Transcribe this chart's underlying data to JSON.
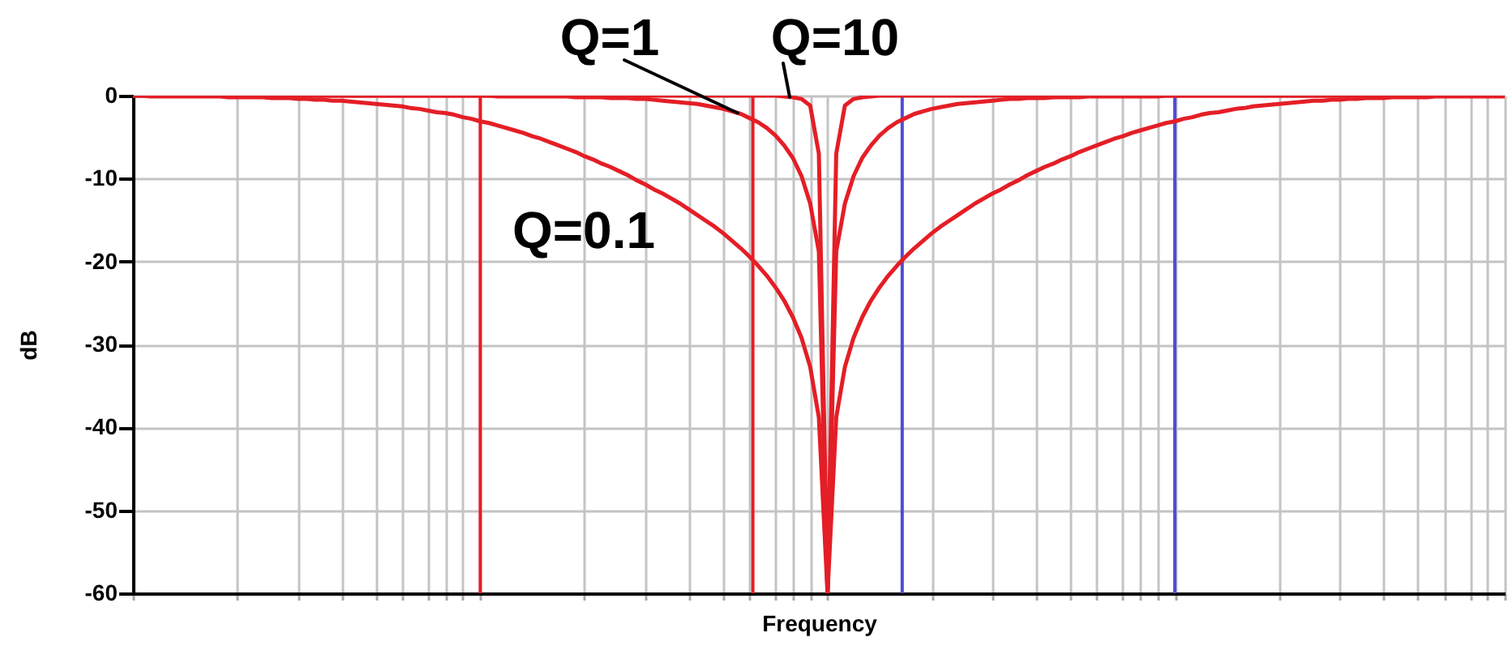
{
  "chart_data": {
    "type": "line",
    "xlabel": "Frequency",
    "ylabel": "dB",
    "grid": true,
    "tick_labels": "y",
    "categories": [
      null,
      null,
      null,
      null,
      null,
      null,
      null,
      null,
      null,
      null,
      null,
      null,
      null,
      null,
      null,
      null,
      null,
      null,
      null,
      null,
      null,
      null,
      null,
      null,
      null,
      null,
      null,
      null,
      null,
      null,
      null,
      null,
      null,
      null,
      null,
      null,
      null,
      null,
      null,
      null,
      null,
      null,
      null,
      null,
      null,
      null,
      null,
      null,
      null,
      null,
      null,
      null,
      null,
      null,
      null,
      null,
      null,
      null,
      null,
      null,
      null,
      null,
      null,
      null,
      null,
      null,
      null,
      null,
      null,
      null,
      null,
      null,
      null,
      null,
      null,
      null,
      null,
      null,
      null,
      null,
      null,
      null,
      null,
      null,
      null,
      null,
      null,
      null,
      null,
      null,
      null,
      null,
      null,
      null,
      null,
      null,
      null,
      null,
      null,
      null,
      null,
      null,
      null,
      null,
      null,
      null,
      null,
      null,
      null,
      null,
      null,
      null,
      null,
      null,
      null,
      null,
      null,
      null,
      null,
      null,
      null,
      null,
      null,
      null,
      null,
      null,
      null,
      null,
      null,
      null,
      null,
      null,
      null,
      null,
      null,
      null,
      null,
      null,
      null,
      null,
      null,
      null,
      null,
      null,
      null,
      null,
      null,
      null,
      null,
      null,
      null,
      null,
      null,
      null,
      null,
      null,
      null,
      null,
      null
    ],
    "ylim": [
      -60,
      0
    ],
    "yticks": [
      -60,
      -50,
      -40,
      -30,
      -20,
      -10,
      0
    ],
    "series": [
      {
        "name": "Q=0.1",
        "color": "#e41e26",
        "values": [
          0,
          0,
          -0.1,
          -0.1,
          -0.1,
          -0.1,
          -0.1,
          -0.1,
          -0.1,
          -0.1,
          -0.1,
          -0.2,
          -0.2,
          -0.2,
          -0.2,
          -0.2,
          -0.3,
          -0.3,
          -0.3,
          -0.4,
          -0.4,
          -0.5,
          -0.5,
          -0.6,
          -0.6,
          -0.7,
          -0.8,
          -0.9,
          -1.0,
          -1.1,
          -1.2,
          -1.3,
          -1.5,
          -1.6,
          -1.8,
          -2.0,
          -2.1,
          -2.3,
          -2.6,
          -2.8,
          -3.1,
          -3.3,
          -3.6,
          -3.9,
          -4.2,
          -4.5,
          -4.9,
          -5.2,
          -5.6,
          -6.0,
          -6.4,
          -6.8,
          -7.3,
          -7.7,
          -8.2,
          -8.6,
          -9.1,
          -9.6,
          -10.2,
          -10.7,
          -11.3,
          -11.8,
          -12.4,
          -13.0,
          -13.7,
          -14.4,
          -15.1,
          -15.8,
          -16.6,
          -17.5,
          -18.4,
          -19.4,
          -20.5,
          -21.7,
          -23.1,
          -24.7,
          -26.7,
          -29.2,
          -32.7,
          -38.8,
          -60,
          -38.8,
          -32.7,
          -29.2,
          -26.7,
          -24.7,
          -23.1,
          -21.7,
          -20.5,
          -19.4,
          -18.4,
          -17.5,
          -16.6,
          -15.8,
          -15.1,
          -14.4,
          -13.7,
          -13.0,
          -12.4,
          -11.8,
          -11.3,
          -10.7,
          -10.2,
          -9.6,
          -9.1,
          -8.6,
          -8.2,
          -7.7,
          -7.3,
          -6.8,
          -6.4,
          -6.0,
          -5.6,
          -5.2,
          -4.9,
          -4.5,
          -4.2,
          -3.9,
          -3.6,
          -3.3,
          -3.1,
          -2.8,
          -2.6,
          -2.3,
          -2.1,
          -2.0,
          -1.8,
          -1.6,
          -1.5,
          -1.3,
          -1.2,
          -1.1,
          -1.0,
          -0.9,
          -0.8,
          -0.7,
          -0.6,
          -0.6,
          -0.5,
          -0.5,
          -0.4,
          -0.4,
          -0.3,
          -0.3,
          -0.3,
          -0.2,
          -0.2,
          -0.2,
          -0.2,
          -0.2,
          -0.1,
          -0.1,
          -0.1,
          -0.1,
          -0.1,
          -0.1,
          -0.1,
          -0.1,
          -0.1
        ]
      },
      {
        "name": "Q=1",
        "color": "#e41e26",
        "values": [
          0,
          0,
          0,
          0,
          0,
          0,
          0,
          0,
          0,
          0,
          0,
          0,
          0,
          0,
          0,
          0,
          0,
          0,
          0,
          0,
          0,
          0,
          0,
          0,
          0,
          0,
          0,
          0,
          0,
          0,
          0,
          0,
          0,
          0,
          0,
          0,
          0,
          0,
          0,
          0,
          0,
          0,
          -0.1,
          -0.1,
          -0.1,
          -0.1,
          -0.1,
          -0.1,
          -0.1,
          -0.1,
          -0.1,
          -0.2,
          -0.2,
          -0.2,
          -0.2,
          -0.3,
          -0.3,
          -0.3,
          -0.4,
          -0.4,
          -0.5,
          -0.6,
          -0.7,
          -0.8,
          -0.9,
          -1.0,
          -1.2,
          -1.4,
          -1.6,
          -1.9,
          -2.2,
          -2.7,
          -3.2,
          -3.9,
          -4.8,
          -6.0,
          -7.5,
          -9.7,
          -13.0,
          -18.8,
          -60,
          -18.8,
          -13.0,
          -9.7,
          -7.5,
          -6.0,
          -4.8,
          -3.9,
          -3.2,
          -2.7,
          -2.2,
          -1.9,
          -1.6,
          -1.4,
          -1.2,
          -1.0,
          -0.9,
          -0.8,
          -0.7,
          -0.6,
          -0.5,
          -0.4,
          -0.4,
          -0.3,
          -0.3,
          -0.3,
          -0.2,
          -0.2,
          -0.2,
          -0.2,
          -0.1,
          -0.1,
          -0.1,
          -0.1,
          -0.1,
          -0.1,
          -0.1,
          -0.1,
          -0.1,
          0,
          0,
          0,
          0,
          0,
          0,
          0,
          0,
          0,
          0,
          0,
          0,
          0,
          0,
          0,
          0,
          0,
          0,
          0,
          0,
          0,
          0,
          0,
          0,
          0,
          0,
          0,
          0,
          0,
          0,
          0,
          0,
          0,
          0,
          0,
          0,
          0,
          0,
          0,
          0
        ]
      },
      {
        "name": "Q=10",
        "color": "#e41e26",
        "values": [
          0,
          0,
          0,
          0,
          0,
          0,
          0,
          0,
          0,
          0,
          0,
          0,
          0,
          0,
          0,
          0,
          0,
          0,
          0,
          0,
          0,
          0,
          0,
          0,
          0,
          0,
          0,
          0,
          0,
          0,
          0,
          0,
          0,
          0,
          0,
          0,
          0,
          0,
          0,
          0,
          0,
          0,
          0,
          0,
          0,
          0,
          0,
          0,
          0,
          0,
          0,
          0,
          0,
          0,
          0,
          0,
          0,
          0,
          0,
          0,
          0,
          0,
          0,
          0,
          0,
          0,
          0,
          0,
          0,
          0,
          0,
          0,
          0,
          0,
          0,
          -0.1,
          -0.2,
          -0.4,
          -1.2,
          -7,
          -60,
          -7,
          -1.2,
          -0.4,
          -0.2,
          -0.1,
          0,
          0,
          0,
          0,
          0,
          0,
          0,
          0,
          0,
          0,
          0,
          0,
          0,
          0,
          0,
          0,
          0,
          0,
          0,
          0,
          0,
          0,
          0,
          0,
          0,
          0,
          0,
          0,
          0,
          0,
          0,
          0,
          0,
          0,
          0,
          0,
          0,
          0,
          0,
          0,
          0,
          0,
          0,
          0,
          0,
          0,
          0,
          0,
          0,
          0,
          0,
          0,
          0,
          0,
          0,
          0,
          0,
          0,
          0,
          0,
          0,
          0,
          0,
          0,
          0,
          0,
          0,
          0,
          0,
          0,
          0,
          0,
          0
        ]
      }
    ]
  }
}
